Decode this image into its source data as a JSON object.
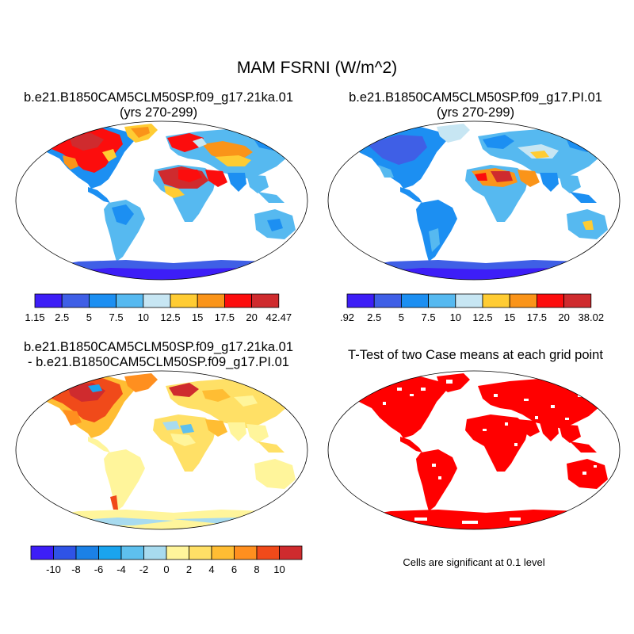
{
  "title": "MAM FSRNI (W/m^2)",
  "panels": [
    {
      "title_line1": "b.e21.B1850CAM5CLM50SP.f09_g17.21ka.01",
      "title_line2": "(yrs 270-299)"
    },
    {
      "title_line1": "b.e21.B1850CAM5CLM50SP.f09_g17.PI.01",
      "title_line2": "(yrs 270-299)"
    },
    {
      "title_line1": "b.e21.B1850CAM5CLM50SP.f09_g17.21ka.01",
      "title_line2": "- b.e21.B1850CAM5CLM50SP.f09_g17.PI.01"
    },
    {
      "title_line1": "T-Test of two Case means at each grid point",
      "title_line2": ""
    }
  ],
  "colorbars": {
    "cb1": {
      "colors": [
        "#3d1ef7",
        "#3f5fe6",
        "#1c8ff2",
        "#56b9f0",
        "#c7e6f3",
        "#ffcc33",
        "#fa9419",
        "#fc0d0d",
        "#cf2b2e"
      ],
      "labels": [
        "1.15",
        "2.5",
        "5",
        "7.5",
        "10",
        "12.5",
        "15",
        "17.5",
        "20",
        "42.47"
      ]
    },
    "cb2": {
      "colors": [
        "#3d1ef7",
        "#3f5fe6",
        "#1c8ff2",
        "#56b9f0",
        "#c7e6f3",
        "#ffcc33",
        "#fa9419",
        "#fc0d0d",
        "#cf2b2e"
      ],
      "labels": [
        ".92",
        "2.5",
        "5",
        "7.5",
        "10",
        "12.5",
        "15",
        "17.5",
        "20",
        "38.02"
      ]
    },
    "cb3": {
      "colors": [
        "#3d1ef7",
        "#2f53e6",
        "#1b81e6",
        "#1aa4ee",
        "#5ec0ee",
        "#a8dbef",
        "#fff59b",
        "#ffe066",
        "#ffbd33",
        "#ff8f1f",
        "#f04a1a",
        "#cf2b2e"
      ],
      "labels": [
        "-10",
        "-8",
        "-6",
        "-4",
        "-2",
        "0",
        "2",
        "4",
        "6",
        "8",
        "10"
      ]
    }
  },
  "significance_note": "Cells are significant at 0.1 level",
  "significance_color": "#ff0000"
}
